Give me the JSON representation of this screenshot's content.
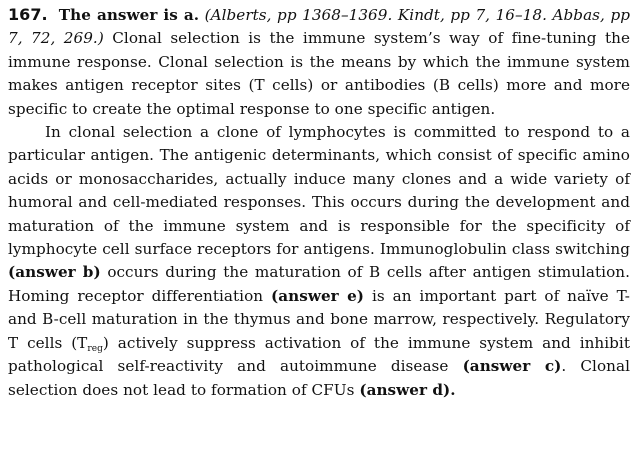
{
  "answer": {
    "number": "167.",
    "heading": "The answer is a.",
    "reference": "(Alberts, pp 1368–1369. Kindt, pp 7, 16–18. Abbas, pp 7, 72, 269.)",
    "p1_text": "Clonal selection is the immune system’s way of fine-tuning the immune response. Clonal selection is the means by which the immune system makes antigen receptor sites (T cells) or antibodies (B cells) more and more specific to create the optimal response to one specific antigen.",
    "p2_text_a": "In clonal selection a clone of lymphocytes is committed to respond to a particular antigen. The antigenic determinants, which consist of specific amino acids or monosaccharides, actually induce many clones and a wide variety of humoral and cell-mediated responses. This occurs during the development and maturation of the immune system and is responsible for the specificity of lymphocyte cell surface receptors for antigens. Immunoglobulin class switching",
    "answer_b": "(answer b)",
    "p2_text_b": "occurs during the maturation of B cells after antigen stimulation. Homing receptor differentiation",
    "answer_e": "(answer e)",
    "p2_text_c": "is an important part of naïve T- and B-cell maturation in the thymus and bone marrow, respectively. Regulatory T cells (T",
    "treg_sub": "reg",
    "p2_text_d": ") actively suppress activation of the immune system and inhibit pathological self-reactivity and autoimmune disease",
    "answer_c": "(answer c)",
    "p2_text_e": ". Clonal selection does not lead to formation of CFUs",
    "answer_d": "(answer d)."
  }
}
